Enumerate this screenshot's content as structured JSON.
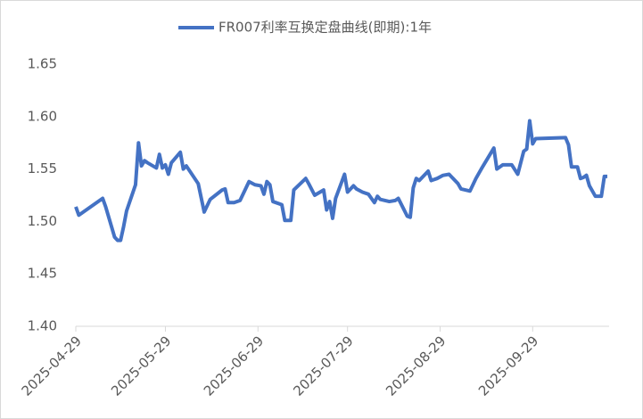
{
  "chart_data": {
    "type": "line",
    "x": [
      "2025-04-29",
      "2025-04-30",
      "2025-05-08",
      "2025-05-09",
      "2025-05-12",
      "2025-05-13",
      "2025-05-14",
      "2025-05-15",
      "2025-05-16",
      "2025-05-19",
      "2025-05-20",
      "2025-05-21",
      "2025-05-22",
      "2025-05-23",
      "2025-05-26",
      "2025-05-27",
      "2025-05-28",
      "2025-05-29",
      "2025-05-30",
      "2025-05-31",
      "2025-06-03",
      "2025-06-04",
      "2025-06-05",
      "2025-06-09",
      "2025-06-11",
      "2025-06-13",
      "2025-06-17",
      "2025-06-18",
      "2025-06-19",
      "2025-06-21",
      "2025-06-23",
      "2025-06-26",
      "2025-06-28",
      "2025-06-30",
      "2025-07-01",
      "2025-07-02",
      "2025-07-03",
      "2025-07-04",
      "2025-07-07",
      "2025-07-08",
      "2025-07-10",
      "2025-07-11",
      "2025-07-15",
      "2025-07-16",
      "2025-07-18",
      "2025-07-21",
      "2025-07-22",
      "2025-07-23",
      "2025-07-24",
      "2025-07-25",
      "2025-07-28",
      "2025-07-29",
      "2025-07-31",
      "2025-08-01",
      "2025-08-03",
      "2025-08-05",
      "2025-08-07",
      "2025-08-08",
      "2025-08-09",
      "2025-08-12",
      "2025-08-14",
      "2025-08-15",
      "2025-08-18",
      "2025-08-19",
      "2025-08-20",
      "2025-08-21",
      "2025-08-22",
      "2025-08-25",
      "2025-08-26",
      "2025-08-28",
      "2025-08-30",
      "2025-09-01",
      "2025-09-03",
      "2025-09-04",
      "2025-09-05",
      "2025-09-08",
      "2025-09-10",
      "2025-09-12",
      "2025-09-16",
      "2025-09-17",
      "2025-09-19",
      "2025-09-22",
      "2025-09-24",
      "2025-09-26",
      "2025-09-27",
      "2025-09-28",
      "2025-09-29",
      "2025-09-30",
      "2025-10-10",
      "2025-10-11",
      "2025-10-12",
      "2025-10-14",
      "2025-10-15",
      "2025-10-16",
      "2025-10-17",
      "2025-10-18",
      "2025-10-20",
      "2025-10-22",
      "2025-10-23",
      "2025-10-24"
    ],
    "series": [
      {
        "name": "FR007利率互换定盘曲线(即期):1年",
        "color": "#4472c4",
        "values": [
          1.514,
          1.506,
          1.522,
          1.514,
          1.485,
          1.482,
          1.482,
          1.495,
          1.51,
          1.535,
          1.575,
          1.553,
          1.558,
          1.556,
          1.551,
          1.564,
          1.551,
          1.554,
          1.545,
          1.556,
          1.566,
          1.55,
          1.553,
          1.536,
          1.509,
          1.521,
          1.53,
          1.531,
          1.518,
          1.518,
          1.52,
          1.538,
          1.535,
          1.534,
          1.526,
          1.538,
          1.535,
          1.519,
          1.516,
          1.501,
          1.501,
          1.53,
          1.541,
          1.536,
          1.525,
          1.53,
          1.511,
          1.519,
          1.503,
          1.522,
          1.545,
          1.528,
          1.534,
          1.531,
          1.528,
          1.526,
          1.518,
          1.524,
          1.521,
          1.519,
          1.52,
          1.522,
          1.505,
          1.504,
          1.532,
          1.541,
          1.539,
          1.548,
          1.539,
          1.541,
          1.544,
          1.545,
          1.539,
          1.536,
          1.531,
          1.529,
          1.541,
          1.551,
          1.57,
          1.55,
          1.554,
          1.554,
          1.545,
          1.567,
          1.569,
          1.596,
          1.574,
          1.579,
          1.58,
          1.573,
          1.552,
          1.552,
          1.541,
          1.542,
          1.544,
          1.534,
          1.524,
          1.524,
          1.543,
          1.543
        ]
      }
    ],
    "xlim": [
      "2025-04-29",
      "2025-10-24"
    ],
    "xticks": [
      "2025-04-29",
      "2025-05-29",
      "2025-06-29",
      "2025-07-29",
      "2025-08-29",
      "2025-09-29"
    ],
    "ylim": [
      1.4,
      1.65
    ],
    "yticks": [
      {
        "value": 1.4,
        "label": "1.40"
      },
      1.45,
      {
        "value": 1.5,
        "label": "1.50"
      },
      1.55,
      {
        "value": 1.6,
        "label": "1.60"
      },
      1.65
    ],
    "legend": "top"
  }
}
